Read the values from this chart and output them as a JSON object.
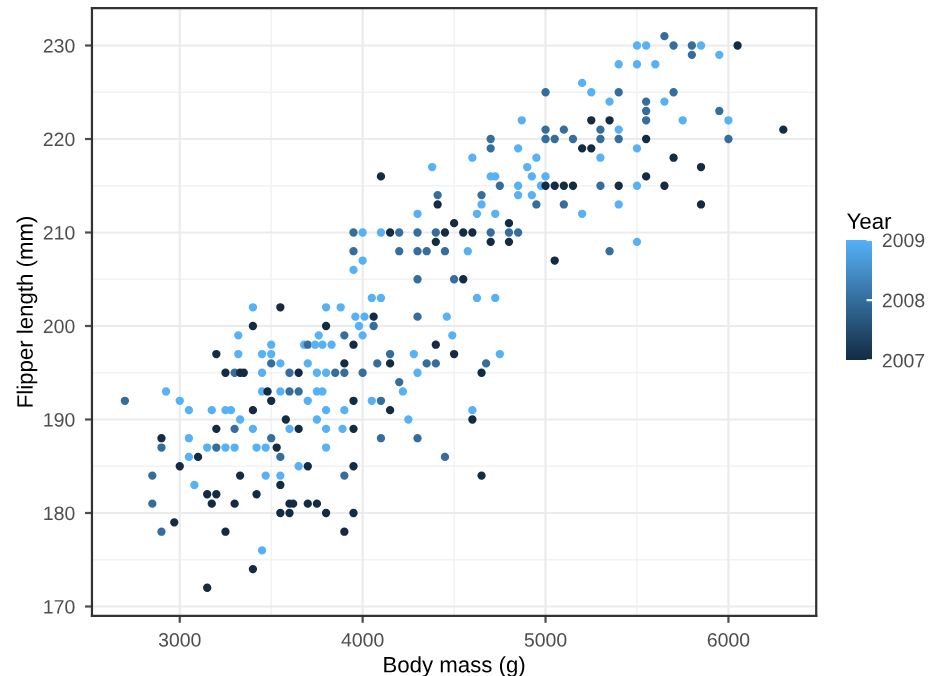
{
  "chart_data": {
    "type": "scatter",
    "xlabel": "Body mass (g)",
    "ylabel": "Flipper length (mm)",
    "clabel": "Year",
    "xlim": [
      2520,
      6480
    ],
    "xticks": [
      3000,
      4000,
      5000,
      6000
    ],
    "ylim": [
      169,
      234
    ],
    "yticks": [
      170,
      180,
      190,
      200,
      210,
      220,
      230
    ],
    "clim": [
      2007,
      2009
    ],
    "cticks": [
      2007,
      2008,
      2009
    ],
    "grid": true,
    "marker": "circle",
    "series": [
      {
        "x": [
          4100,
          4380,
          4410,
          4410,
          4300,
          3950,
          4000,
          4100,
          4150,
          4200,
          4300,
          4400,
          4450,
          4500,
          4550,
          4400,
          4200,
          4300,
          4350,
          4450,
          3950,
          4000,
          3950,
          4300,
          4500,
          4550,
          4050,
          4100,
          3400,
          3550,
          3800,
          3880,
          3960,
          4010,
          4060,
          4300,
          4460,
          3400,
          3800,
          3980,
          4060,
          3320,
          3760,
          3900,
          4490,
          3200,
          3320,
          3450,
          3500,
          3500,
          3680,
          3700,
          3740,
          3780,
          3830,
          3950,
          4000,
          3250,
          3300,
          3330,
          3350,
          3450,
          3500,
          3550,
          3600,
          3650,
          3700,
          3750,
          3800,
          3850,
          3900,
          3900,
          4000,
          4150,
          4150,
          4080,
          4200,
          4220,
          4280,
          4300,
          4350,
          4400,
          4400,
          4500,
          2700,
          2925,
          3000,
          3050,
          3175,
          3250,
          3280,
          3400,
          3450,
          3480,
          3500,
          3550,
          3600,
          3650,
          3700,
          3750,
          3780,
          3800,
          3900,
          3950,
          4050,
          4100,
          4150,
          2900,
          2900,
          3050,
          3050,
          3100,
          3000,
          3150,
          3200,
          3200,
          3250,
          3300,
          3300,
          3330,
          3400,
          3420,
          3470,
          3500,
          3530,
          3550,
          3580,
          3600,
          3650,
          3650,
          3700,
          3750,
          3800,
          3800,
          3890,
          3950,
          4100,
          4250,
          4300,
          4450,
          2850,
          2850,
          2900,
          2970,
          3080,
          3150,
          3200,
          3175,
          3250,
          3300,
          3330,
          3420,
          3470,
          3550,
          3550,
          3550,
          3600,
          3620,
          3600,
          3700,
          3750,
          3800,
          3900,
          3950,
          3950,
          3900,
          3450,
          3400,
          3150,
          5650,
          5500,
          5550,
          5700,
          5800,
          5850,
          6050,
          5800,
          5950,
          5400,
          5500,
          5600,
          5000,
          5200,
          5250,
          5400,
          5350,
          5550,
          5650,
          5700,
          5550,
          5550,
          5950,
          5750,
          6000,
          6300,
          5250,
          5350,
          4870,
          5400,
          4700,
          4700,
          5000,
          5000,
          5050,
          5100,
          5150,
          5300,
          5300,
          5400,
          5550,
          6000,
          5200,
          5250,
          5500,
          4600,
          4850,
          4950,
          5300,
          5700,
          5850,
          4900,
          4700,
          4725,
          4750,
          4850,
          4925,
          5000,
          4975,
          5000,
          5050,
          5100,
          5150,
          5300,
          5400,
          5550,
          5500,
          5650,
          4650,
          4650,
          4850,
          4925,
          4950,
          5100,
          5400,
          5850,
          4625,
          4725,
          4800,
          5200,
          4600,
          4700,
          4800,
          4850,
          4575,
          4700,
          4800,
          5050,
          5350,
          5500,
          4625,
          4725,
          4750,
          4675,
          4650,
          4600,
          4600,
          4650
        ],
        "values": [
          216,
          217,
          214,
          213,
          212,
          210,
          210,
          210,
          210,
          210,
          210,
          210,
          210,
          211,
          210,
          209,
          208,
          208,
          208,
          208,
          208,
          207,
          206,
          205,
          205,
          205,
          203,
          203,
          202,
          202,
          202,
          202,
          201,
          201,
          201,
          201,
          201,
          200,
          200,
          200,
          200,
          199,
          199,
          199,
          199,
          197,
          197,
          197,
          197,
          198,
          198,
          198,
          198,
          198,
          198,
          198,
          199,
          195,
          195,
          195,
          195,
          195,
          196,
          196,
          195,
          195,
          196,
          195,
          195,
          195,
          195,
          196,
          195,
          197,
          196,
          196,
          194,
          193,
          197,
          195,
          196,
          196,
          198,
          197,
          192,
          193,
          192,
          191,
          191,
          191,
          191,
          191,
          193,
          193,
          192,
          193,
          193,
          193,
          192,
          193,
          193,
          191,
          191,
          192,
          192,
          192,
          191,
          188,
          187,
          188,
          186,
          186,
          185,
          187,
          189,
          187,
          187,
          187,
          189,
          190,
          189,
          187,
          187,
          188,
          187,
          186,
          190,
          189,
          189,
          185,
          185,
          190,
          189,
          187,
          189,
          189,
          188,
          190,
          188,
          186,
          184,
          181,
          178,
          179,
          183,
          182,
          182,
          181,
          178,
          181,
          184,
          182,
          184,
          184,
          183,
          180,
          181,
          181,
          180,
          181,
          181,
          180,
          184,
          185,
          180,
          178,
          176,
          174,
          172,
          231,
          230,
          230,
          230,
          230,
          230,
          230,
          229,
          229,
          228,
          228,
          228,
          225,
          226,
          225,
          225,
          224,
          224,
          224,
          225,
          223,
          222,
          223,
          222,
          222,
          221,
          222,
          222,
          222,
          221,
          220,
          219,
          221,
          220,
          220,
          221,
          220,
          221,
          220,
          220,
          220,
          220,
          219,
          219,
          219,
          218,
          219,
          218,
          218,
          218,
          217,
          217,
          216,
          216,
          215,
          215,
          216,
          216,
          215,
          215,
          215,
          215,
          215,
          215,
          215,
          216,
          215,
          215,
          214,
          213,
          214,
          214,
          213,
          213,
          213,
          213,
          212,
          212,
          211,
          212,
          210,
          210,
          210,
          210,
          208,
          209,
          209,
          207,
          208,
          209,
          203,
          203,
          197,
          196,
          195,
          191,
          190,
          184
        ],
        "cvalues": [
          2007,
          2009,
          2008,
          2007,
          2009,
          2008,
          2009,
          2009,
          2007,
          2008,
          2008,
          2008,
          2007,
          2007,
          2007,
          2007,
          2008,
          2008,
          2008,
          2008,
          2008,
          2009,
          2009,
          2008,
          2008,
          2007,
          2009,
          2009,
          2009,
          2007,
          2009,
          2009,
          2009,
          2009,
          2007,
          2008,
          2009,
          2007,
          2007,
          2009,
          2008,
          2009,
          2009,
          2008,
          2009,
          2007,
          2009,
          2009,
          2009,
          2009,
          2009,
          2008,
          2009,
          2009,
          2009,
          2007,
          2009,
          2007,
          2008,
          2007,
          2007,
          2009,
          2008,
          2009,
          2008,
          2007,
          2009,
          2009,
          2009,
          2008,
          2008,
          2007,
          2008,
          2008,
          2007,
          2008,
          2008,
          2009,
          2009,
          2009,
          2008,
          2008,
          2007,
          2007,
          2008,
          2009,
          2009,
          2009,
          2009,
          2009,
          2009,
          2007,
          2009,
          2007,
          2007,
          2009,
          2008,
          2008,
          2009,
          2009,
          2009,
          2009,
          2009,
          2007,
          2009,
          2008,
          2007,
          2007,
          2008,
          2009,
          2009,
          2007,
          2007,
          2009,
          2007,
          2008,
          2009,
          2009,
          2008,
          2009,
          2009,
          2009,
          2009,
          2008,
          2007,
          2008,
          2007,
          2009,
          2007,
          2009,
          2007,
          2009,
          2009,
          2009,
          2009,
          2007,
          2008,
          2009,
          2008,
          2008,
          2008,
          2008,
          2008,
          2007,
          2009,
          2007,
          2007,
          2007,
          2007,
          2007,
          2007,
          2007,
          2009,
          2009,
          2007,
          2007,
          2007,
          2007,
          2007,
          2007,
          2007,
          2007,
          2008,
          2007,
          2007,
          2007,
          2009,
          2007,
          2007,
          2008,
          2009,
          2009,
          2008,
          2008,
          2009,
          2007,
          2008,
          2009,
          2009,
          2009,
          2009,
          2008,
          2009,
          2009,
          2008,
          2009,
          2008,
          2009,
          2008,
          2008,
          2008,
          2008,
          2009,
          2009,
          2007,
          2007,
          2007,
          2009,
          2009,
          2008,
          2008,
          2008,
          2008,
          2008,
          2008,
          2008,
          2008,
          2008,
          2008,
          2007,
          2008,
          2007,
          2007,
          2009,
          2009,
          2009,
          2009,
          2009,
          2007,
          2007,
          2009,
          2009,
          2009,
          2008,
          2009,
          2009,
          2009,
          2009,
          2007,
          2007,
          2007,
          2007,
          2008,
          2007,
          2007,
          2009,
          2007,
          2008,
          2009,
          2009,
          2009,
          2008,
          2008,
          2009,
          2007,
          2009,
          2009,
          2007,
          2009,
          2007,
          2008,
          2008,
          2008,
          2009,
          2007,
          2007,
          2007,
          2008,
          2009,
          2009,
          2009,
          2009,
          2008,
          2007,
          2009,
          2007,
          2007
        ]
      }
    ]
  }
}
